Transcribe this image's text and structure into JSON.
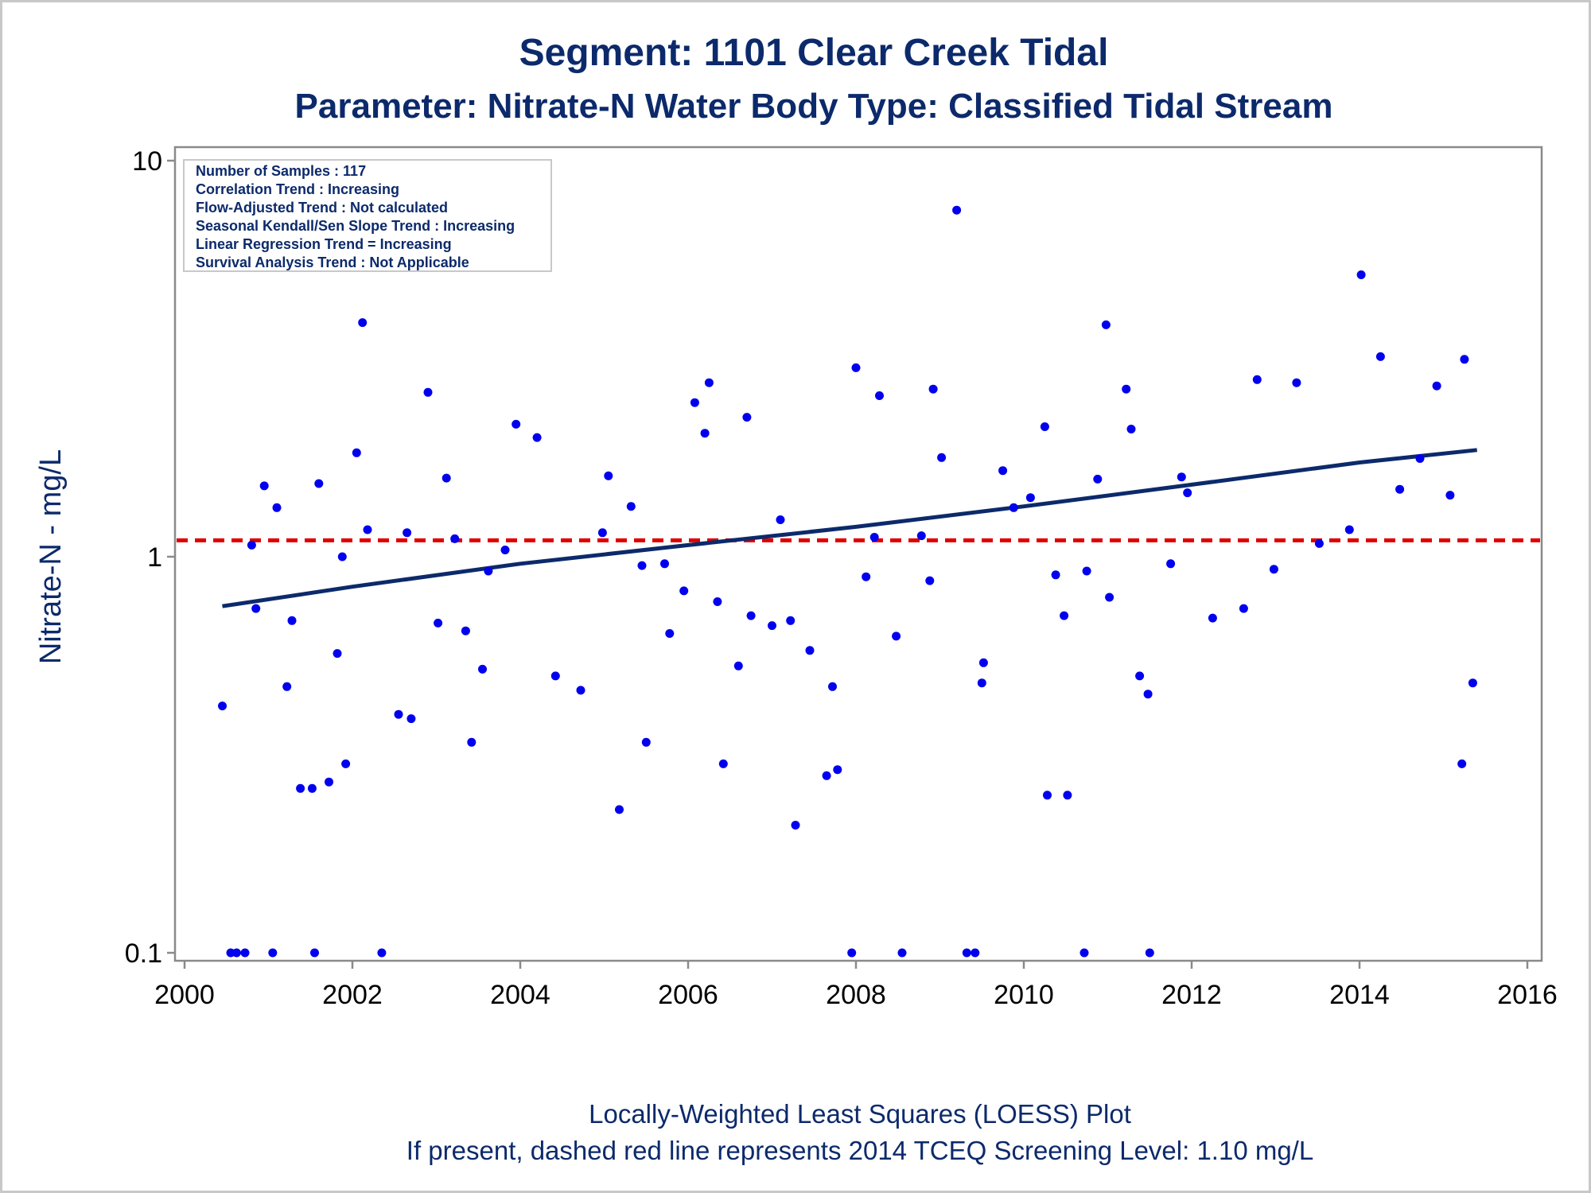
{
  "chart_data": {
    "type": "scatter",
    "title": "Segment: 1101  Clear Creek Tidal",
    "subtitle": "Parameter: Nitrate-N   Water Body Type: Classified Tidal Stream",
    "xlabel": "",
    "ylabel": "Nitrate-N - mg/L",
    "yscale": "log",
    "ylim": [
      0.1,
      10
    ],
    "y_ticks": [
      "0.1",
      "1",
      "10"
    ],
    "xlim": [
      2000,
      2016
    ],
    "x_ticks": [
      "2000",
      "2002",
      "2004",
      "2006",
      "2008",
      "2010",
      "2012",
      "2014",
      "2016"
    ],
    "grid": false,
    "stats_box": {
      "placement": "top-left",
      "lines": [
        "Number of Samples : 117",
        "Correlation Trend : Increasing",
        "Flow-Adjusted Trend : Not calculated",
        "Seasonal Kendall/Sen Slope Trend : Increasing",
        "Linear Regression Trend = Increasing",
        "Survival Analysis Trend : Not Applicable"
      ]
    },
    "screening_level": {
      "value": 1.1,
      "color": "#e00000",
      "style": "dashed"
    },
    "trend_line": {
      "color": "#0c2a6b",
      "x": [
        2000.45,
        2002.0,
        2004.0,
        2006.0,
        2008.0,
        2010.0,
        2012.0,
        2014.0,
        2015.4
      ],
      "y": [
        0.75,
        0.84,
        0.96,
        1.07,
        1.19,
        1.34,
        1.52,
        1.73,
        1.86
      ]
    },
    "points_color": "#0000ee",
    "points": [
      [
        2000.45,
        0.42
      ],
      [
        2000.55,
        0.1
      ],
      [
        2000.62,
        0.1
      ],
      [
        2000.72,
        0.1
      ],
      [
        2000.8,
        1.07
      ],
      [
        2000.85,
        0.74
      ],
      [
        2000.95,
        1.51
      ],
      [
        2001.05,
        0.1
      ],
      [
        2001.1,
        1.33
      ],
      [
        2001.22,
        0.47
      ],
      [
        2001.28,
        0.69
      ],
      [
        2001.38,
        0.26
      ],
      [
        2001.52,
        0.26
      ],
      [
        2001.55,
        0.1
      ],
      [
        2001.6,
        1.53
      ],
      [
        2001.72,
        0.27
      ],
      [
        2001.82,
        0.57
      ],
      [
        2001.88,
        1.0
      ],
      [
        2001.92,
        0.3
      ],
      [
        2002.05,
        1.83
      ],
      [
        2002.12,
        3.9
      ],
      [
        2002.18,
        1.17
      ],
      [
        2002.35,
        0.1
      ],
      [
        2002.55,
        0.4
      ],
      [
        2002.65,
        1.15
      ],
      [
        2002.7,
        0.39
      ],
      [
        2002.9,
        2.6
      ],
      [
        2003.02,
        0.68
      ],
      [
        2003.12,
        1.58
      ],
      [
        2003.22,
        1.11
      ],
      [
        2003.35,
        0.65
      ],
      [
        2003.42,
        0.34
      ],
      [
        2003.55,
        0.52
      ],
      [
        2003.62,
        0.92
      ],
      [
        2003.82,
        1.04
      ],
      [
        2003.95,
        2.16
      ],
      [
        2004.2,
        2.0
      ],
      [
        2004.42,
        0.5
      ],
      [
        2004.72,
        0.46
      ],
      [
        2004.98,
        1.15
      ],
      [
        2005.05,
        1.6
      ],
      [
        2005.18,
        0.23
      ],
      [
        2005.32,
        1.34
      ],
      [
        2005.45,
        0.95
      ],
      [
        2005.5,
        0.34
      ],
      [
        2005.72,
        0.96
      ],
      [
        2005.78,
        0.64
      ],
      [
        2005.95,
        0.82
      ],
      [
        2006.08,
        2.45
      ],
      [
        2006.2,
        2.05
      ],
      [
        2006.25,
        2.75
      ],
      [
        2006.35,
        0.77
      ],
      [
        2006.42,
        0.3
      ],
      [
        2006.6,
        0.53
      ],
      [
        2006.7,
        2.25
      ],
      [
        2006.75,
        0.71
      ],
      [
        2007.0,
        0.67
      ],
      [
        2007.1,
        1.24
      ],
      [
        2007.22,
        0.69
      ],
      [
        2007.28,
        0.21
      ],
      [
        2007.45,
        0.58
      ],
      [
        2007.65,
        0.28
      ],
      [
        2007.72,
        0.47
      ],
      [
        2007.78,
        0.29
      ],
      [
        2007.95,
        0.1
      ],
      [
        2008.0,
        3.0
      ],
      [
        2008.12,
        0.89
      ],
      [
        2008.22,
        1.12
      ],
      [
        2008.28,
        2.55
      ],
      [
        2008.48,
        0.63
      ],
      [
        2008.55,
        0.1
      ],
      [
        2008.78,
        1.13
      ],
      [
        2008.88,
        0.87
      ],
      [
        2008.92,
        2.65
      ],
      [
        2009.02,
        1.78
      ],
      [
        2009.2,
        7.5
      ],
      [
        2009.32,
        0.1
      ],
      [
        2009.42,
        0.1
      ],
      [
        2009.5,
        0.48
      ],
      [
        2009.52,
        0.54
      ],
      [
        2009.75,
        1.65
      ],
      [
        2009.88,
        1.33
      ],
      [
        2010.08,
        1.41
      ],
      [
        2010.25,
        2.13
      ],
      [
        2010.28,
        0.25
      ],
      [
        2010.38,
        0.9
      ],
      [
        2010.48,
        0.71
      ],
      [
        2010.52,
        0.25
      ],
      [
        2010.72,
        0.1
      ],
      [
        2010.75,
        0.92
      ],
      [
        2010.88,
        1.57
      ],
      [
        2010.98,
        3.85
      ],
      [
        2011.02,
        0.79
      ],
      [
        2011.22,
        2.65
      ],
      [
        2011.28,
        2.1
      ],
      [
        2011.38,
        0.5
      ],
      [
        2011.48,
        0.45
      ],
      [
        2011.5,
        0.1
      ],
      [
        2011.75,
        0.96
      ],
      [
        2011.88,
        1.59
      ],
      [
        2011.95,
        1.45
      ],
      [
        2012.25,
        0.7
      ],
      [
        2012.62,
        0.74
      ],
      [
        2012.78,
        2.8
      ],
      [
        2012.98,
        0.93
      ],
      [
        2013.25,
        2.75
      ],
      [
        2013.52,
        1.08
      ],
      [
        2013.88,
        1.17
      ],
      [
        2014.02,
        5.15
      ],
      [
        2014.25,
        3.2
      ],
      [
        2014.48,
        1.48
      ],
      [
        2014.72,
        1.77
      ],
      [
        2014.92,
        2.7
      ],
      [
        2015.08,
        1.43
      ],
      [
        2015.22,
        0.3
      ],
      [
        2015.25,
        3.15
      ],
      [
        2015.35,
        0.48
      ]
    ],
    "footnotes": [
      "Locally-Weighted Least Squares (LOESS) Plot",
      "If present, dashed red line represents 2014 TCEQ Screening Level: 1.10 mg/L"
    ]
  }
}
